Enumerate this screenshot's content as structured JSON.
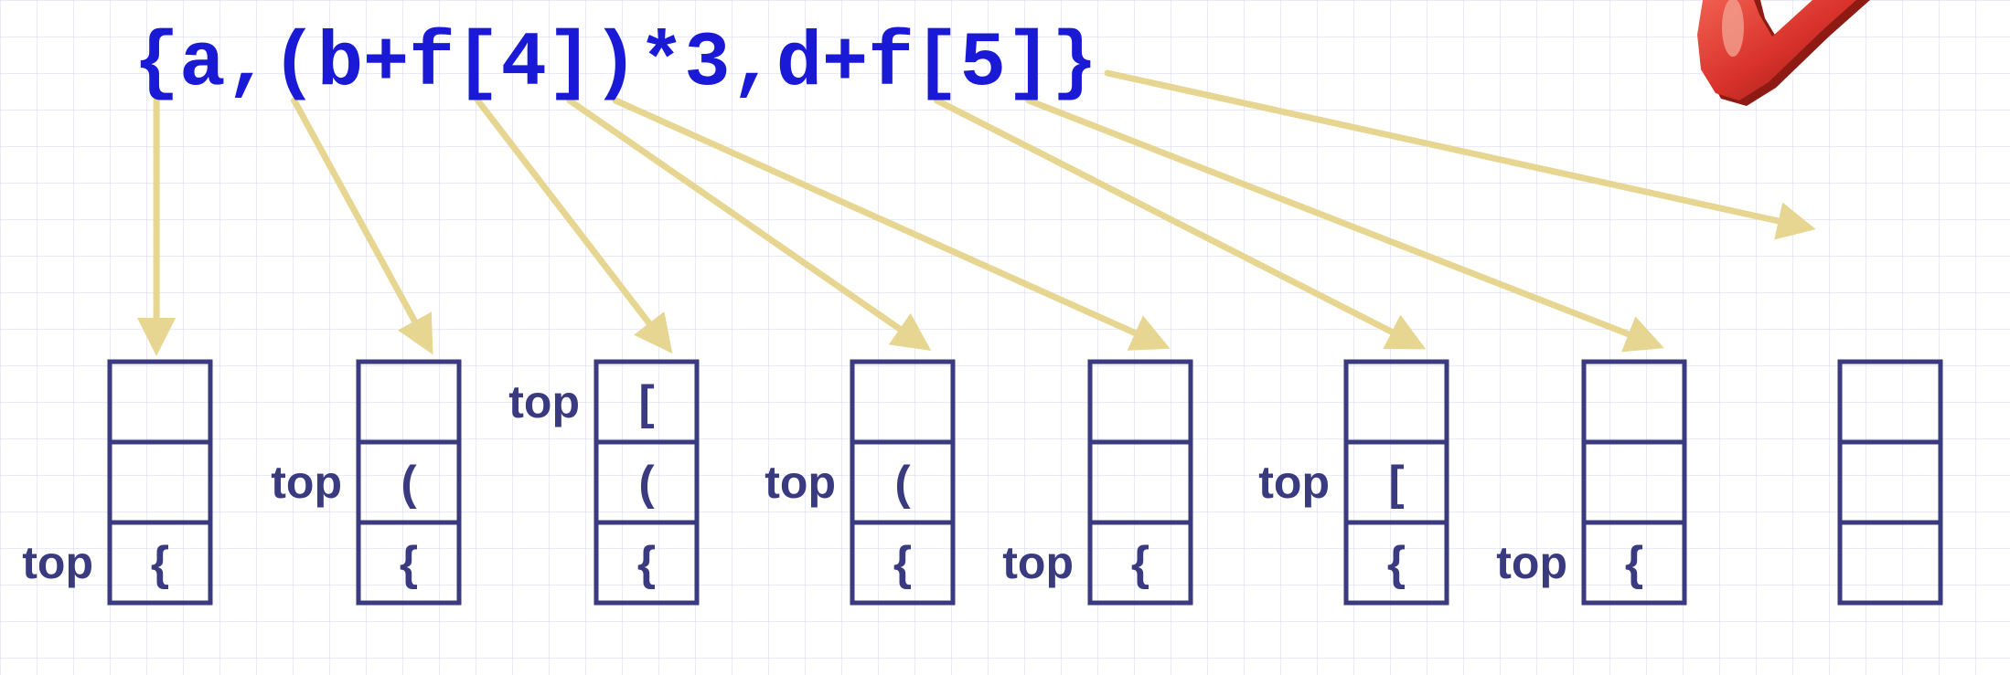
{
  "expression": {
    "chars": [
      "{",
      "a",
      ",",
      "(",
      "b",
      "+",
      "f",
      "[",
      "4",
      "]",
      ")",
      "*",
      "3",
      ",",
      "d",
      "+",
      "f",
      "[",
      "5",
      "]",
      "}"
    ]
  },
  "top_label": "top",
  "stacks": [
    {
      "cells": [
        "",
        "",
        "{"
      ],
      "top_row": 2
    },
    {
      "cells": [
        "",
        "(",
        "{"
      ],
      "top_row": 1
    },
    {
      "cells": [
        "[",
        "(",
        "{"
      ],
      "top_row": 0
    },
    {
      "cells": [
        "",
        "(",
        "{"
      ],
      "top_row": 1
    },
    {
      "cells": [
        "",
        "",
        "{"
      ],
      "top_row": 2
    },
    {
      "cells": [
        "",
        "[",
        "{"
      ],
      "top_row": 1
    },
    {
      "cells": [
        "",
        "",
        "{"
      ],
      "top_row": 2
    },
    {
      "cells": [
        "",
        "",
        ""
      ],
      "top_row": null
    }
  ],
  "arrows": [
    {
      "from_char": 0,
      "to_stack": 0
    },
    {
      "from_char": 3,
      "to_stack": 1
    },
    {
      "from_char": 7,
      "to_stack": 2
    },
    {
      "from_char": 9,
      "to_stack": 3
    },
    {
      "from_char": 10,
      "to_stack": 4
    },
    {
      "from_char": 17,
      "to_stack": 5
    },
    {
      "from_char": 19,
      "to_stack": 6
    },
    {
      "from_char": 20,
      "to_stack": 7
    }
  ],
  "colors": {
    "expression": "#1a1ad6",
    "stack": "#3a3a80",
    "arrow": "#e6d691",
    "checkmark": "#d9322b"
  },
  "icons": {
    "checkmark": "checkmark-icon"
  }
}
